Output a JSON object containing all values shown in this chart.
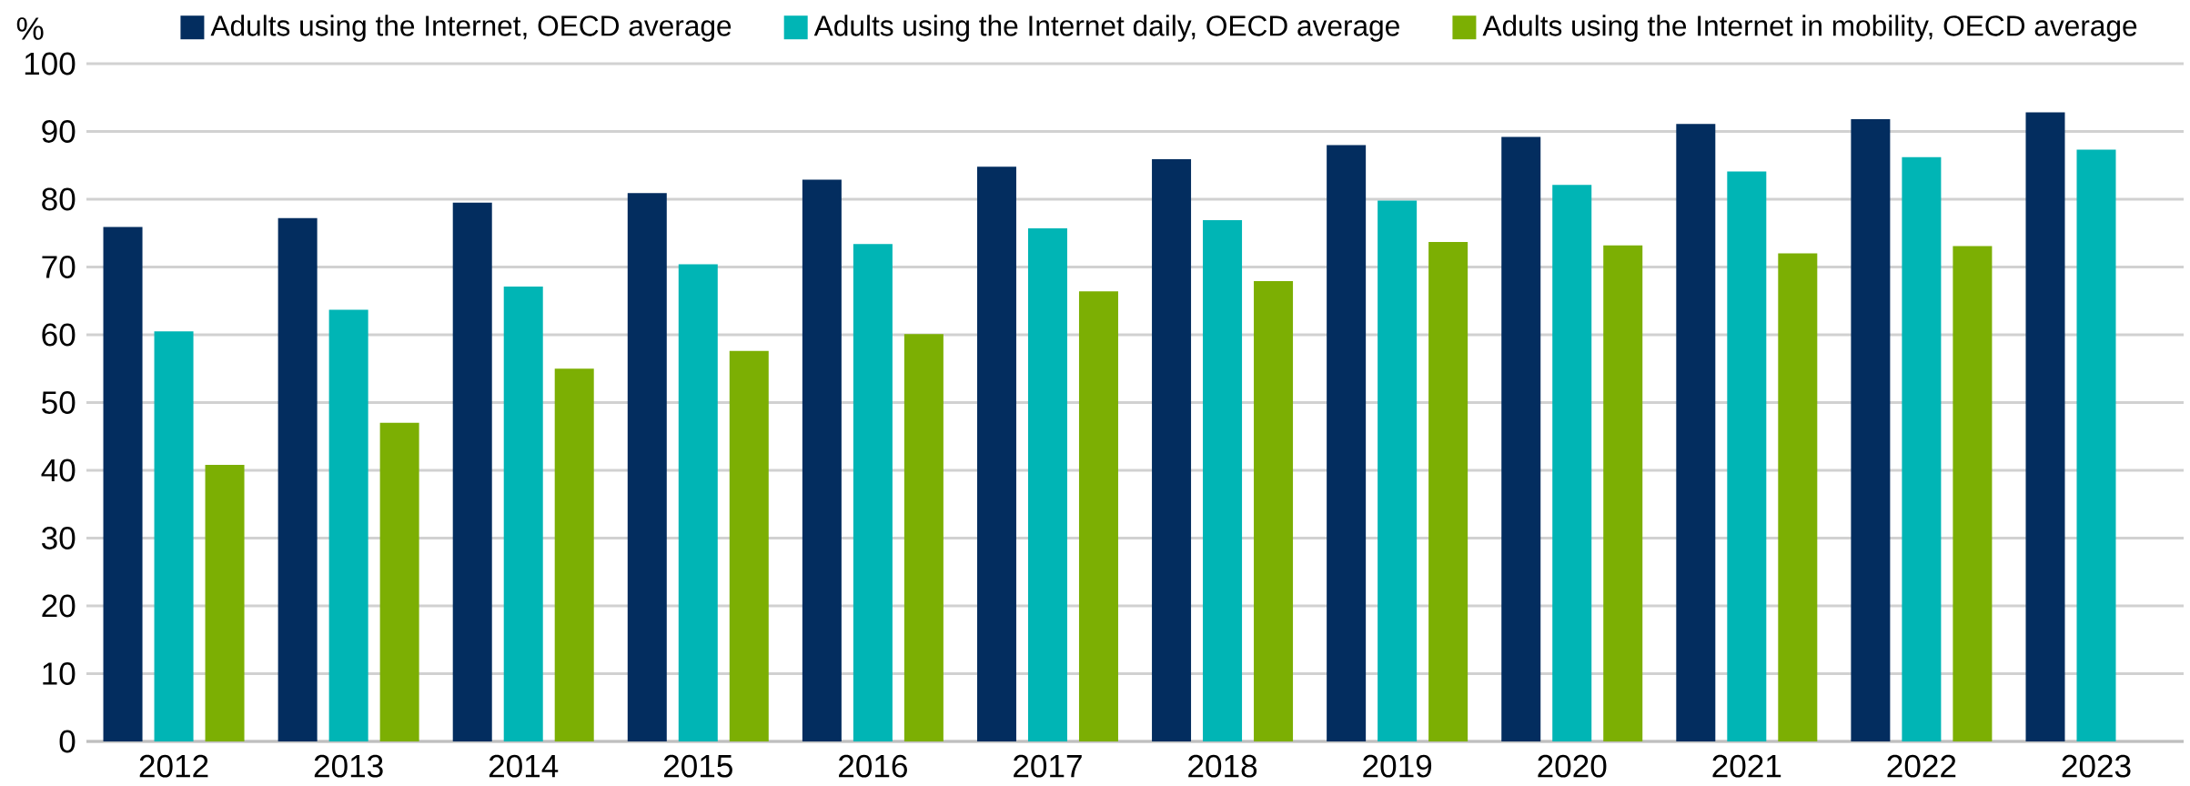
{
  "chart_data": {
    "type": "bar",
    "ylabel": "%",
    "categories": [
      "2012",
      "2013",
      "2014",
      "2015",
      "2016",
      "2017",
      "2018",
      "2019",
      "2020",
      "2021",
      "2022",
      "2023"
    ],
    "series": [
      {
        "name": "Adults using the Internet, OECD average",
        "color": "#032d5f",
        "values": [
          75.9,
          77.2,
          79.5,
          80.9,
          82.9,
          84.8,
          85.9,
          88.0,
          89.2,
          91.1,
          91.8,
          92.8
        ]
      },
      {
        "name": "Adults using the Internet daily, OECD average",
        "color": "#00b5b5",
        "values": [
          60.5,
          63.7,
          67.1,
          70.4,
          73.4,
          75.7,
          76.9,
          79.8,
          82.1,
          84.1,
          86.2,
          87.3
        ]
      },
      {
        "name": "Adults using the Internet in mobility, OECD average",
        "color": "#7caf03",
        "values": [
          40.8,
          47.0,
          55.0,
          57.6,
          60.1,
          66.4,
          67.9,
          73.7,
          73.2,
          72.0,
          73.1,
          null
        ]
      }
    ],
    "ylim": [
      0,
      100
    ],
    "yticks": [
      0,
      10,
      20,
      30,
      40,
      50,
      60,
      70,
      80,
      90,
      100
    ],
    "grid": "y",
    "legend": "top"
  }
}
